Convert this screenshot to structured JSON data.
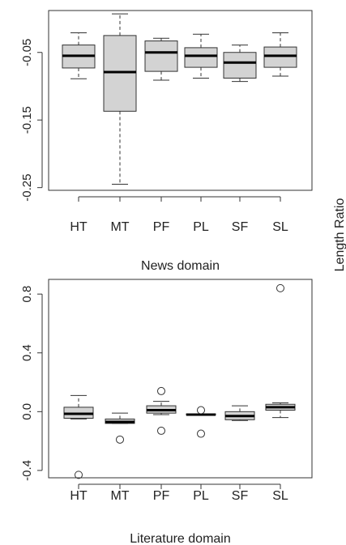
{
  "y_title": "Length Ratio",
  "chart_data": [
    {
      "type": "boxplot",
      "xlabel": "News domain",
      "ylabel": "Length Ratio",
      "categories": [
        "HT",
        "MT",
        "PF",
        "PL",
        "SF",
        "SL"
      ],
      "yticks": [
        -0.25,
        -0.15,
        -0.05
      ],
      "ytick_labels": [
        "-0.25",
        "-0.15",
        "-0.05"
      ],
      "ylim": [
        -0.254,
        0.012
      ],
      "grid": false,
      "boxes": [
        {
          "category": "HT",
          "whisker_low": -0.089,
          "q1": -0.073,
          "median": -0.055,
          "q3": -0.039,
          "whisker_high": -0.021,
          "outliers": []
        },
        {
          "category": "MT",
          "whisker_low": -0.245,
          "q1": -0.137,
          "median": -0.079,
          "q3": -0.025,
          "whisker_high": 0.007,
          "outliers": []
        },
        {
          "category": "PF",
          "whisker_low": -0.091,
          "q1": -0.078,
          "median": -0.05,
          "q3": -0.033,
          "whisker_high": -0.029,
          "outliers": []
        },
        {
          "category": "PL",
          "whisker_low": -0.088,
          "q1": -0.072,
          "median": -0.055,
          "q3": -0.043,
          "whisker_high": -0.023,
          "outliers": []
        },
        {
          "category": "SF",
          "whisker_low": -0.093,
          "q1": -0.088,
          "median": -0.065,
          "q3": -0.05,
          "whisker_high": -0.039,
          "outliers": []
        },
        {
          "category": "SL",
          "whisker_low": -0.085,
          "q1": -0.072,
          "median": -0.055,
          "q3": -0.042,
          "whisker_high": -0.021,
          "outliers": []
        }
      ]
    },
    {
      "type": "boxplot",
      "xlabel": "Literature domain",
      "ylabel": "Length Ratio",
      "categories": [
        "HT",
        "MT",
        "PF",
        "PL",
        "SF",
        "SL"
      ],
      "yticks": [
        -0.4,
        0.0,
        0.4,
        0.8
      ],
      "ytick_labels": [
        "-0.4",
        "0.0",
        "0.4",
        "0.8"
      ],
      "ylim": [
        -0.45,
        0.9
      ],
      "grid": false,
      "boxes": [
        {
          "category": "HT",
          "whisker_low": -0.05,
          "q1": -0.045,
          "median": -0.015,
          "q3": 0.03,
          "whisker_high": 0.11,
          "outliers": [
            -0.43
          ]
        },
        {
          "category": "MT",
          "whisker_low": -0.08,
          "q1": -0.08,
          "median": -0.07,
          "q3": -0.05,
          "whisker_high": -0.01,
          "outliers": [
            -0.19
          ]
        },
        {
          "category": "PF",
          "whisker_low": -0.02,
          "q1": -0.01,
          "median": 0.01,
          "q3": 0.04,
          "whisker_high": 0.07,
          "outliers": [
            0.14,
            -0.13
          ]
        },
        {
          "category": "PL",
          "whisker_low": -0.02,
          "q1": -0.02,
          "median": -0.02,
          "q3": -0.015,
          "whisker_high": -0.015,
          "outliers": [
            0.01,
            -0.15
          ]
        },
        {
          "category": "SF",
          "whisker_low": -0.06,
          "q1": -0.055,
          "median": -0.03,
          "q3": 0.0,
          "whisker_high": 0.04,
          "outliers": []
        },
        {
          "category": "SL",
          "whisker_low": -0.04,
          "q1": 0.01,
          "median": 0.03,
          "q3": 0.05,
          "whisker_high": 0.06,
          "outliers": [
            0.84
          ]
        }
      ]
    }
  ]
}
